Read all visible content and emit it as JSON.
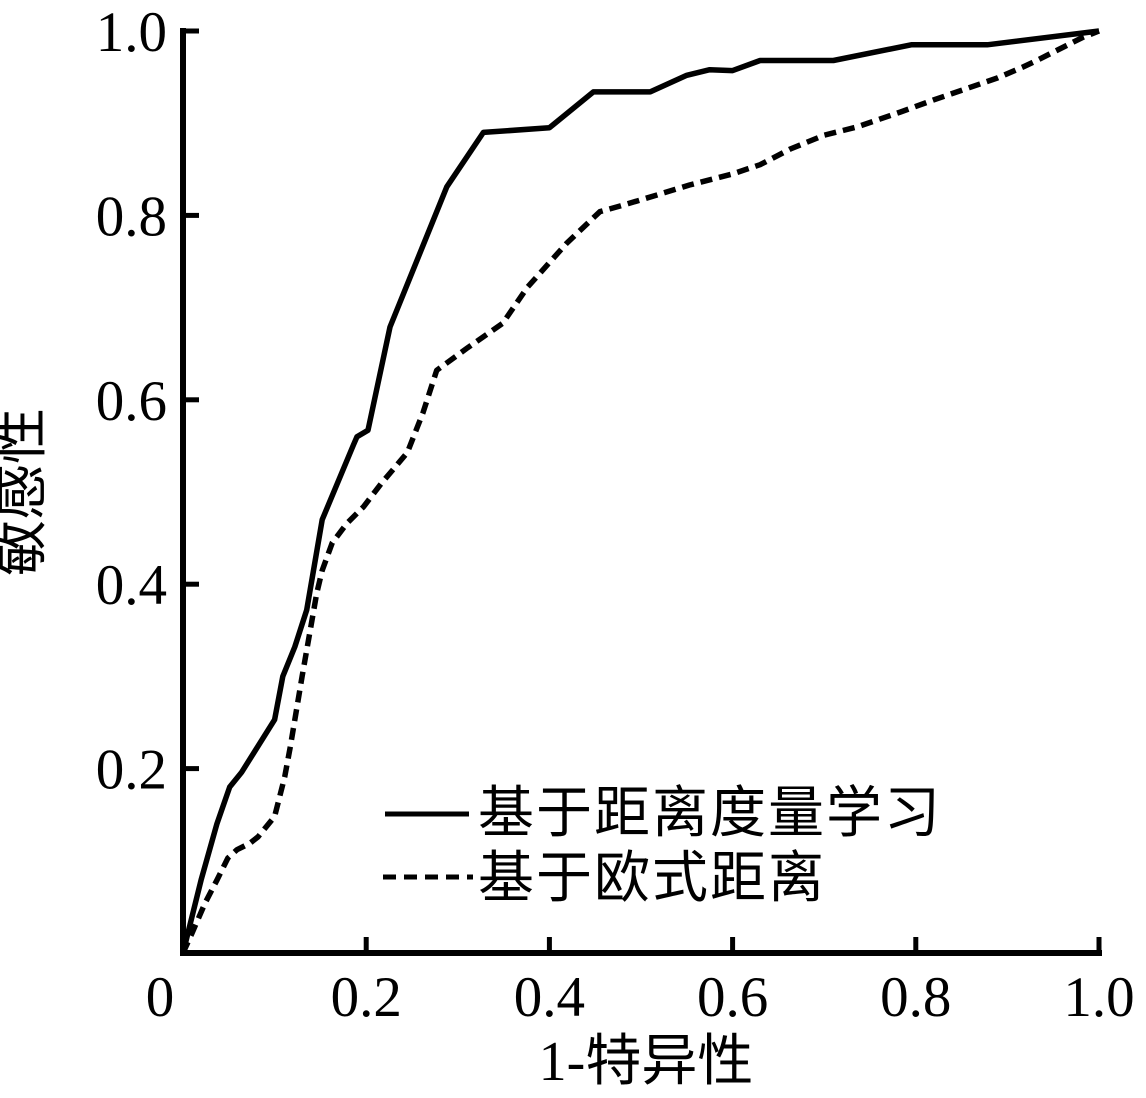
{
  "figure": {
    "background_color": "#ffffff",
    "ink_color": "#000000"
  },
  "chart_data": {
    "type": "line",
    "title": "",
    "xlabel": "1-特异性",
    "ylabel": "敏感性",
    "xlim": [
      0,
      1.0
    ],
    "ylim": [
      0,
      1.0
    ],
    "grid": false,
    "legend_position": "inside-lower-right",
    "x_ticks": [
      {
        "value": 0,
        "label": "0"
      },
      {
        "value": 0.2,
        "label": "0.2"
      },
      {
        "value": 0.4,
        "label": "0.4"
      },
      {
        "value": 0.6,
        "label": "0.6"
      },
      {
        "value": 0.8,
        "label": "0.8"
      },
      {
        "value": 1.0,
        "label": "1.0"
      }
    ],
    "y_ticks": [
      {
        "value": 0.2,
        "label": "0.2"
      },
      {
        "value": 0.4,
        "label": "0.4"
      },
      {
        "value": 0.6,
        "label": "0.6"
      },
      {
        "value": 0.8,
        "label": "0.8"
      },
      {
        "value": 1.0,
        "label": "1.0"
      }
    ],
    "series": [
      {
        "name": "基于距离度量学习",
        "line_style": "solid",
        "color": "#000000",
        "points": [
          [
            0,
            0
          ],
          [
            0.02,
            0.08
          ],
          [
            0.037,
            0.14
          ],
          [
            0.051,
            0.18
          ],
          [
            0.064,
            0.196
          ],
          [
            0.1,
            0.253
          ],
          [
            0.109,
            0.3
          ],
          [
            0.122,
            0.332
          ],
          [
            0.135,
            0.372
          ],
          [
            0.152,
            0.47
          ],
          [
            0.186,
            0.551
          ],
          [
            0.19,
            0.56
          ],
          [
            0.202,
            0.567
          ],
          [
            0.226,
            0.679
          ],
          [
            0.288,
            0.831
          ],
          [
            0.328,
            0.89
          ],
          [
            0.4,
            0.895
          ],
          [
            0.448,
            0.934
          ],
          [
            0.51,
            0.934
          ],
          [
            0.55,
            0.952
          ],
          [
            0.575,
            0.958
          ],
          [
            0.6,
            0.957
          ],
          [
            0.63,
            0.968
          ],
          [
            0.71,
            0.968
          ],
          [
            0.795,
            0.985
          ],
          [
            0.878,
            0.985
          ],
          [
            1,
            1
          ]
        ]
      },
      {
        "name": "基于欧式距离",
        "line_style": "dashed",
        "color": "#000000",
        "points": [
          [
            0,
            0
          ],
          [
            0.01,
            0.022
          ],
          [
            0.024,
            0.054
          ],
          [
            0.037,
            0.079
          ],
          [
            0.049,
            0.103
          ],
          [
            0.059,
            0.112
          ],
          [
            0.073,
            0.119
          ],
          [
            0.082,
            0.126
          ],
          [
            0.1,
            0.148
          ],
          [
            0.111,
            0.191
          ],
          [
            0.117,
            0.223
          ],
          [
            0.13,
            0.3
          ],
          [
            0.146,
            0.39
          ],
          [
            0.152,
            0.415
          ],
          [
            0.163,
            0.445
          ],
          [
            0.179,
            0.466
          ],
          [
            0.197,
            0.484
          ],
          [
            0.217,
            0.51
          ],
          [
            0.229,
            0.524
          ],
          [
            0.245,
            0.543
          ],
          [
            0.262,
            0.586
          ],
          [
            0.277,
            0.632
          ],
          [
            0.31,
            0.656
          ],
          [
            0.349,
            0.683
          ],
          [
            0.376,
            0.722
          ],
          [
            0.419,
            0.77
          ],
          [
            0.455,
            0.804
          ],
          [
            0.48,
            0.811
          ],
          [
            0.517,
            0.822
          ],
          [
            0.553,
            0.833
          ],
          [
            0.6,
            0.845
          ],
          [
            0.63,
            0.855
          ],
          [
            0.663,
            0.872
          ],
          [
            0.7,
            0.887
          ],
          [
            0.736,
            0.896
          ],
          [
            0.783,
            0.912
          ],
          [
            0.819,
            0.925
          ],
          [
            0.851,
            0.936
          ],
          [
            0.889,
            0.949
          ],
          [
            0.917,
            0.961
          ],
          [
            0.932,
            0.968
          ],
          [
            0.982,
            0.993
          ],
          [
            1,
            1
          ]
        ]
      }
    ]
  }
}
